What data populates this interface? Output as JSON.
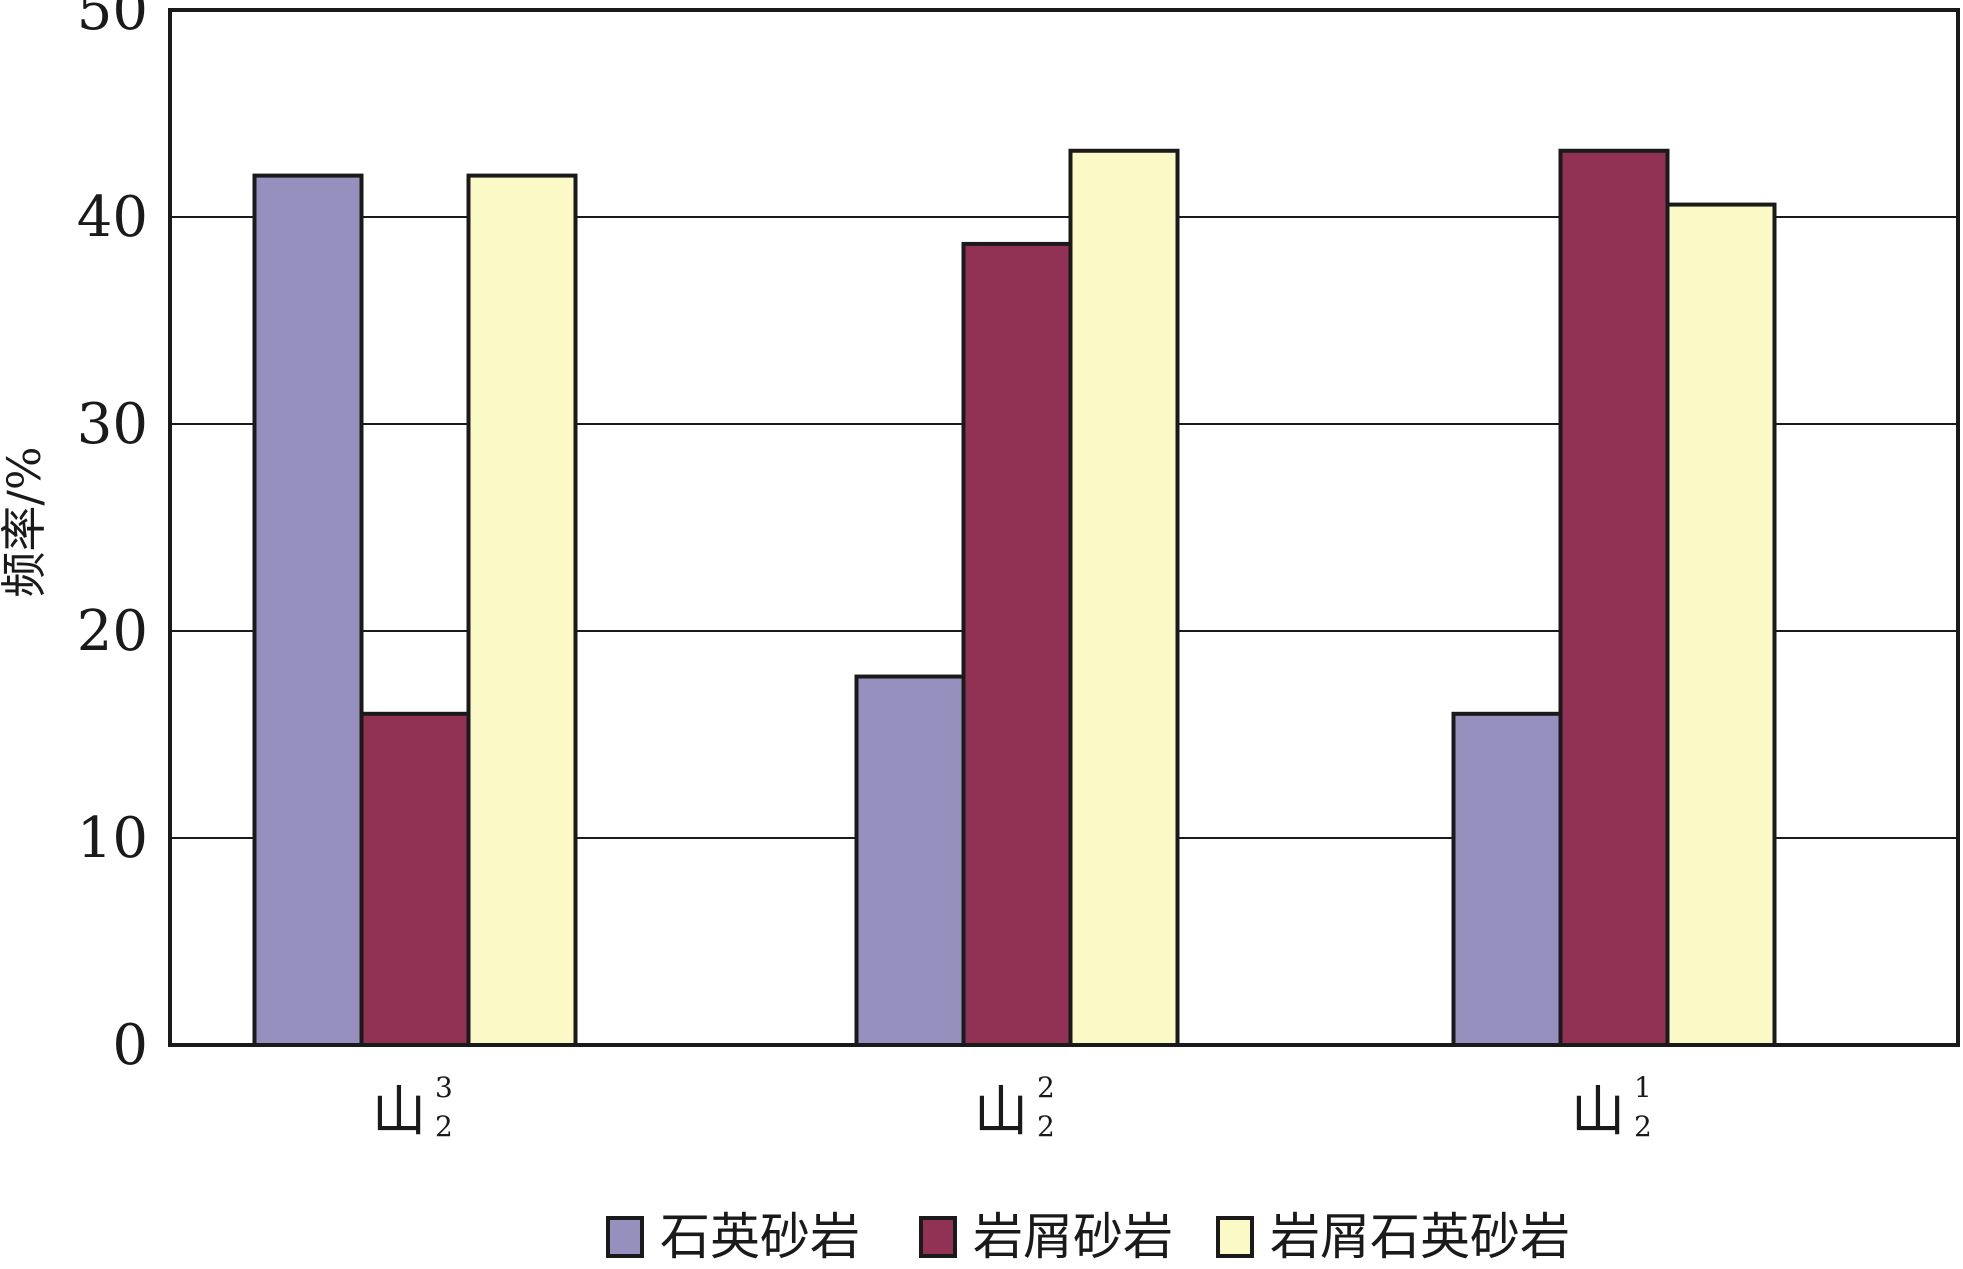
{
  "chart_data": {
    "type": "bar",
    "ylabel": "频率/%",
    "ylim": [
      0,
      50
    ],
    "yticks": [
      "0",
      "10",
      "20",
      "30",
      "40",
      "50"
    ],
    "grid": true,
    "legend_position": "bottom",
    "categories": [
      {
        "main": "山",
        "sub": "2",
        "sup": "3"
      },
      {
        "main": "山",
        "sub": "2",
        "sup": "2"
      },
      {
        "main": "山",
        "sub": "2",
        "sup": "1"
      }
    ],
    "series": [
      {
        "name": "石英砂岩",
        "color": "#9690bf",
        "values": [
          42,
          17.8,
          16
        ]
      },
      {
        "name": "岩屑砂岩",
        "color": "#913255",
        "values": [
          16,
          38.7,
          43.2
        ]
      },
      {
        "name": "岩屑石英砂岩",
        "color": "#fbf9c5",
        "values": [
          42,
          43.2,
          40.6
        ]
      }
    ]
  }
}
